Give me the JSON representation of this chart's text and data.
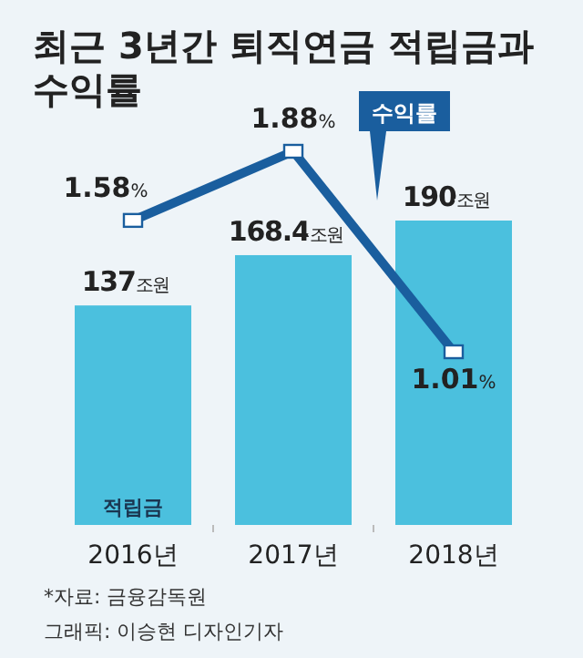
{
  "chart_data": {
    "type": "bar",
    "title": "최근 3년간 퇴직연금 적립금과 수익률",
    "categories": [
      "2016년",
      "2017년",
      "2018년"
    ],
    "marker": "square",
    "series": [
      {
        "name": "적립금",
        "color": "#4bc0de",
        "values": [
          137,
          168.4,
          190
        ],
        "value_labels": [
          "137조원",
          "168.4조원",
          "190조원"
        ]
      },
      {
        "name": "수익률",
        "type": "line",
        "axis": "y2",
        "color": "#1a5e9e",
        "values": [
          1.58,
          1.88,
          1.01
        ],
        "value_labels": [
          "1.58%",
          "1.88%",
          "1.01%"
        ]
      }
    ],
    "annotations": [
      "*자료: 금융감독원",
      "그래픽: 이승현 디자인기자"
    ]
  }
}
